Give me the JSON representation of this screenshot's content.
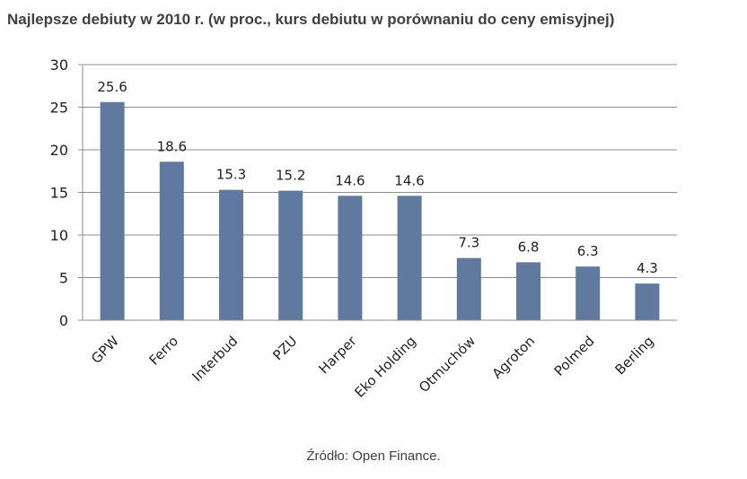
{
  "chart_data": {
    "type": "bar",
    "title": "Najlepsze debiuty w 2010 r. (w proc., kurs debiutu w porównaniu do ceny emisyjnej)",
    "categories": [
      "GPW",
      "Ferro",
      "Interbud",
      "PZU",
      "Harper",
      "Eko Holding",
      "Otmuchów",
      "Agroton",
      "Polmed",
      "Berling"
    ],
    "values": [
      25.6,
      18.6,
      15.3,
      15.2,
      14.6,
      14.6,
      7.3,
      6.8,
      6.3,
      4.3
    ],
    "data_labels": [
      "25.6",
      "18.6",
      "15.3",
      "15.2",
      "14.6",
      "14.6",
      "7.3",
      "6.8",
      "6.3",
      "4.3"
    ],
    "y_ticks": [
      "0",
      "5",
      "10",
      "15",
      "20",
      "25",
      "30"
    ],
    "ylim": [
      0,
      30
    ],
    "grid": true,
    "legend": "none",
    "bar_color": "#5f7a9e",
    "xlabel": "",
    "ylabel": ""
  },
  "source": "Źródło: Open Finance."
}
